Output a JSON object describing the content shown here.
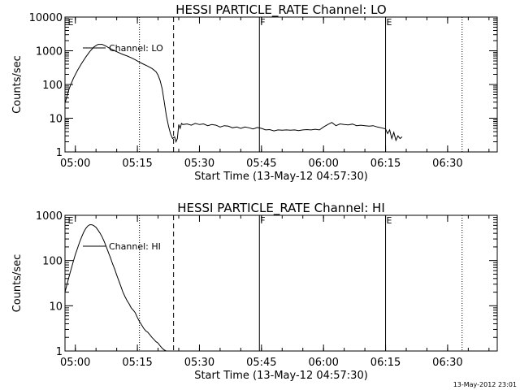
{
  "timestamp": "13-May-2012 23:01",
  "chart_data": [
    {
      "type": "line",
      "title": "HESSI PARTICLE_RATE Channel: LO",
      "xlabel": "Start Time (13-May-12 04:57:30)",
      "ylabel": "Counts/sec",
      "yscale": "log",
      "ylim": [
        1,
        10000
      ],
      "xlim": [
        "04:57:30",
        "06:42:00"
      ],
      "x_ticks": [
        "05:00",
        "05:15",
        "05:30",
        "05:45",
        "06:00",
        "06:15",
        "06:30"
      ],
      "y_ticks": [
        "1",
        "10",
        "100",
        "1000",
        "10000"
      ],
      "legend": "top-left",
      "series": [
        {
          "name": "Channel: LO",
          "x": [
            "04:57:30",
            "04:58:30",
            "04:59:30",
            "05:00:30",
            "05:01:30",
            "05:02:30",
            "05:03:30",
            "05:04:30",
            "05:05:30",
            "05:06:30",
            "05:07:30",
            "05:08:30",
            "05:09:30",
            "05:10:30",
            "05:11:30",
            "05:12:30",
            "05:13:30",
            "05:14:30",
            "05:15:30",
            "05:16:30",
            "05:17:30",
            "05:18:30",
            "05:19:30",
            "05:20:00",
            "05:20:30",
            "05:21:00",
            "05:21:30",
            "05:22:00",
            "05:22:30",
            "05:23:00",
            "05:23:30",
            "05:24:00",
            "05:24:20",
            "05:24:40",
            "05:25:00",
            "05:25:20",
            "05:25:40",
            "05:26:00",
            "05:27:00",
            "05:28:00",
            "05:29:00",
            "05:30:00",
            "05:31:00",
            "05:32:00",
            "05:33:00",
            "05:34:00",
            "05:35:00",
            "05:36:00",
            "05:37:00",
            "05:38:00",
            "05:39:00",
            "05:40:00",
            "05:41:00",
            "05:42:00",
            "05:43:00",
            "05:44:00",
            "05:45:00",
            "05:46:00",
            "05:47:00",
            "05:48:00",
            "05:49:00",
            "05:50:00",
            "05:51:00",
            "05:52:00",
            "05:53:00",
            "05:54:00",
            "05:55:00",
            "05:56:00",
            "05:57:00",
            "05:58:00",
            "05:59:00",
            "06:00:00",
            "06:01:00",
            "06:02:00",
            "06:03:00",
            "06:04:00",
            "06:05:00",
            "06:06:00",
            "06:07:00",
            "06:08:00",
            "06:09:00",
            "06:10:00",
            "06:11:00",
            "06:12:00",
            "06:13:00",
            "06:14:00",
            "06:15:00",
            "06:15:30",
            "06:16:00",
            "06:16:30",
            "06:17:00",
            "06:17:30",
            "06:18:00",
            "06:18:30",
            "06:19:00"
          ],
          "y": [
            28,
            75,
            150,
            260,
            420,
            650,
            950,
            1300,
            1550,
            1550,
            1350,
            1150,
            1000,
            880,
            780,
            700,
            620,
            540,
            460,
            400,
            350,
            300,
            240,
            190,
            130,
            75,
            30,
            12,
            6,
            3.5,
            2.5,
            2.8,
            2,
            2.5,
            6.5,
            5,
            7,
            6.5,
            6.8,
            6.2,
            7,
            6.5,
            6.8,
            6,
            6.5,
            6.2,
            5.5,
            6,
            5.8,
            5.2,
            5.5,
            5,
            5.5,
            5.2,
            4.8,
            5.3,
            5,
            4.5,
            4.6,
            4.2,
            4.5,
            4.4,
            4.5,
            4.4,
            4.5,
            4.3,
            4.5,
            4.6,
            4.5,
            4.7,
            4.5,
            5.5,
            6.5,
            7.5,
            6,
            6.8,
            6.5,
            6.3,
            6.7,
            6,
            6.2,
            6,
            5.8,
            6,
            5.5,
            5.2,
            4.8,
            3.5,
            4.5,
            2.5,
            3.8,
            2.2,
            3,
            2.5,
            2.8
          ]
        }
      ],
      "markers": [
        {
          "x": "05:15:30",
          "style": "dotted"
        },
        {
          "x": "05:23:45",
          "style": "dashed"
        },
        {
          "x": "05:44:30",
          "style": "solid",
          "label": "F"
        },
        {
          "x": "06:15:00",
          "style": "solid",
          "label": "E"
        },
        {
          "x": "06:33:30",
          "style": "dotted"
        },
        {
          "x": "04:58:00",
          "style": "none",
          "label": "E"
        }
      ]
    },
    {
      "type": "line",
      "title": "HESSI PARTICLE_RATE Channel: HI",
      "xlabel": "Start Time (13-May-12 04:57:30)",
      "ylabel": "Counts/sec",
      "yscale": "log",
      "ylim": [
        1,
        1000
      ],
      "xlim": [
        "04:57:30",
        "06:42:00"
      ],
      "x_ticks": [
        "05:00",
        "05:15",
        "05:30",
        "05:45",
        "06:00",
        "06:15",
        "06:30"
      ],
      "y_ticks": [
        "1",
        "10",
        "100",
        "1000"
      ],
      "legend": "top-left",
      "series": [
        {
          "name": "Channel: HI",
          "x": [
            "04:57:30",
            "04:58:00",
            "04:58:30",
            "04:59:00",
            "04:59:30",
            "05:00:00",
            "05:00:30",
            "05:01:00",
            "05:01:30",
            "05:02:00",
            "05:02:30",
            "05:03:00",
            "05:03:30",
            "05:04:00",
            "05:04:30",
            "05:05:00",
            "05:05:30",
            "05:06:00",
            "05:06:30",
            "05:07:00",
            "05:07:30",
            "05:08:00",
            "05:08:30",
            "05:09:00",
            "05:09:30",
            "05:10:00",
            "05:10:30",
            "05:11:00",
            "05:11:30",
            "05:12:00",
            "05:12:30",
            "05:13:00",
            "05:13:30",
            "05:14:00",
            "05:14:30",
            "05:15:00",
            "05:15:30",
            "05:16:00",
            "05:16:30",
            "05:17:00",
            "05:17:30",
            "05:18:00",
            "05:18:30",
            "05:19:00",
            "05:19:30",
            "05:20:00",
            "05:20:30",
            "05:21:00",
            "05:21:30",
            "05:22:00"
          ],
          "y": [
            20,
            30,
            45,
            65,
            95,
            135,
            185,
            250,
            330,
            420,
            510,
            580,
            620,
            620,
            590,
            540,
            470,
            400,
            330,
            260,
            200,
            150,
            115,
            85,
            65,
            48,
            36,
            27,
            20,
            16,
            13,
            11,
            9,
            8,
            7,
            5.5,
            4.5,
            3.8,
            3.2,
            2.8,
            2.6,
            2.3,
            2,
            1.8,
            1.6,
            1.5,
            1.3,
            1.15,
            1.05,
            1
          ]
        }
      ],
      "markers": [
        {
          "x": "05:15:30",
          "style": "dotted"
        },
        {
          "x": "05:23:45",
          "style": "dashed"
        },
        {
          "x": "05:44:30",
          "style": "solid",
          "label": "F"
        },
        {
          "x": "06:15:00",
          "style": "solid",
          "label": "E"
        },
        {
          "x": "06:33:30",
          "style": "dotted"
        },
        {
          "x": "04:58:00",
          "style": "none",
          "label": "E"
        }
      ]
    }
  ]
}
